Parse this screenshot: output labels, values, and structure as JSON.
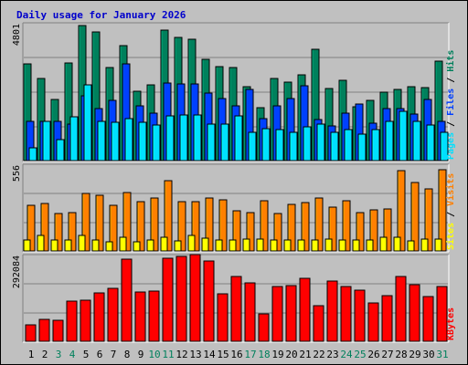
{
  "window": {
    "title": "Daily usage for January 2026"
  },
  "colors": {
    "background": "#c0c0c0",
    "panel": "#c0c0c0",
    "grid": "#808080",
    "hits": "#00805c",
    "files": "#0040ff",
    "pages": "#00e0ff",
    "visits": "#ff8000",
    "sites": "#ffff00",
    "kbytes": "#ff0000",
    "day_weekday": "#000000",
    "day_weekend": "#00805c"
  },
  "chart_data": [
    {
      "type": "bar",
      "panel": "hits-files-pages",
      "title": "Daily usage for January 2026",
      "axis_max_label": "4801",
      "ylim": [
        0,
        4801
      ],
      "legend": [
        {
          "key": "pages",
          "label": "Pages"
        },
        {
          "key": "files",
          "label": "Files"
        },
        {
          "key": "hits",
          "label": "Hits"
        }
      ],
      "legend_separator": "/",
      "legend_placement": "right-vertical",
      "categories": [
        "1",
        "2",
        "3",
        "4",
        "5",
        "6",
        "7",
        "8",
        "9",
        "10",
        "11",
        "12",
        "13",
        "14",
        "15",
        "16",
        "17",
        "18",
        "19",
        "20",
        "21",
        "22",
        "23",
        "24",
        "25",
        "26",
        "27",
        "28",
        "29",
        "30",
        "31"
      ],
      "weekend_days": [
        "3",
        "4",
        "10",
        "11",
        "17",
        "18",
        "24",
        "25",
        "31"
      ],
      "series": [
        {
          "name": "Hits",
          "key": "hits",
          "values": [
            3432,
            2910,
            2160,
            3474,
            4801,
            4572,
            3300,
            4080,
            2480,
            2708,
            4635,
            4364,
            4329,
            3616,
            3338,
            3312,
            2614,
            1877,
            2905,
            2780,
            3062,
            3972,
            2552,
            2851,
            1913,
            2125,
            2420,
            2532,
            2620,
            2580,
            3542
          ]
        },
        {
          "name": "Files",
          "key": "files",
          "values": [
            1400,
            1400,
            1400,
            1300,
            2300,
            1842,
            2129,
            3447,
            1945,
            1700,
            2762,
            2728,
            2741,
            2401,
            2218,
            1949,
            2541,
            1499,
            1934,
            2193,
            2671,
            1449,
            1234,
            1700,
            2014,
            1345,
            1839,
            1859,
            1643,
            2181,
            1410
          ]
        },
        {
          "name": "Pages",
          "key": "pages",
          "values": [
            442,
            1400,
            762,
            1561,
            2700,
            1400,
            1372,
            1492,
            1369,
            1272,
            1600,
            1635,
            1612,
            1300,
            1300,
            1600,
            1000,
            1130,
            1101,
            1013,
            1192,
            1298,
            1000,
            1100,
            950,
            1112,
            1400,
            1747,
            1400,
            1271,
            1000
          ]
        }
      ]
    },
    {
      "type": "bar",
      "panel": "visits-sites",
      "axis_max_label": "556",
      "ylim": [
        0,
        556
      ],
      "legend": [
        {
          "key": "sites",
          "label": "Sites"
        },
        {
          "key": "visits",
          "label": "Visits"
        }
      ],
      "legend_separator": "/",
      "legend_placement": "right-vertical",
      "categories": [
        "1",
        "2",
        "3",
        "4",
        "5",
        "6",
        "7",
        "8",
        "9",
        "10",
        "11",
        "12",
        "13",
        "14",
        "15",
        "16",
        "17",
        "18",
        "19",
        "20",
        "21",
        "22",
        "23",
        "24",
        "25",
        "26",
        "27",
        "28",
        "29",
        "30",
        "31"
      ],
      "series": [
        {
          "name": "Visits",
          "key": "visits",
          "values": [
            301,
            313,
            246,
            254,
            383,
            369,
            301,
            386,
            326,
            348,
            463,
            325,
            324,
            350,
            339,
            263,
            254,
            331,
            246,
            308,
            319,
            351,
            289,
            330,
            255,
            274,
            280,
            533,
            452,
            409,
            535
          ]
        },
        {
          "name": "Sites",
          "key": "sites",
          "values": [
            75,
            100,
            70,
            70,
            104,
            70,
            60,
            90,
            60,
            70,
            90,
            66,
            100,
            85,
            70,
            70,
            76,
            81,
            70,
            70,
            70,
            70,
            76,
            70,
            70,
            70,
            90,
            90,
            66,
            80,
            81
          ]
        }
      ]
    },
    {
      "type": "bar",
      "panel": "kbytes",
      "axis_max_label": "292084",
      "ylim": [
        0,
        292084
      ],
      "legend": [
        {
          "key": "kbytes",
          "label": "KBytes"
        }
      ],
      "legend_placement": "right-vertical",
      "categories": [
        "1",
        "2",
        "3",
        "4",
        "5",
        "6",
        "7",
        "8",
        "9",
        "10",
        "11",
        "12",
        "13",
        "14",
        "15",
        "16",
        "17",
        "18",
        "19",
        "20",
        "21",
        "22",
        "23",
        "24",
        "25",
        "26",
        "27",
        "28",
        "29",
        "30",
        "31"
      ],
      "series": [
        {
          "name": "KBytes",
          "key": "kbytes",
          "values": [
            56000,
            75000,
            72000,
            141000,
            143000,
            168000,
            184000,
            287000,
            172000,
            175000,
            290000,
            294000,
            301000,
            278000,
            166000,
            226000,
            202000,
            96000,
            192000,
            195000,
            219000,
            124000,
            209000,
            189000,
            179000,
            134000,
            158000,
            225000,
            196000,
            155000,
            192000
          ]
        }
      ]
    }
  ]
}
